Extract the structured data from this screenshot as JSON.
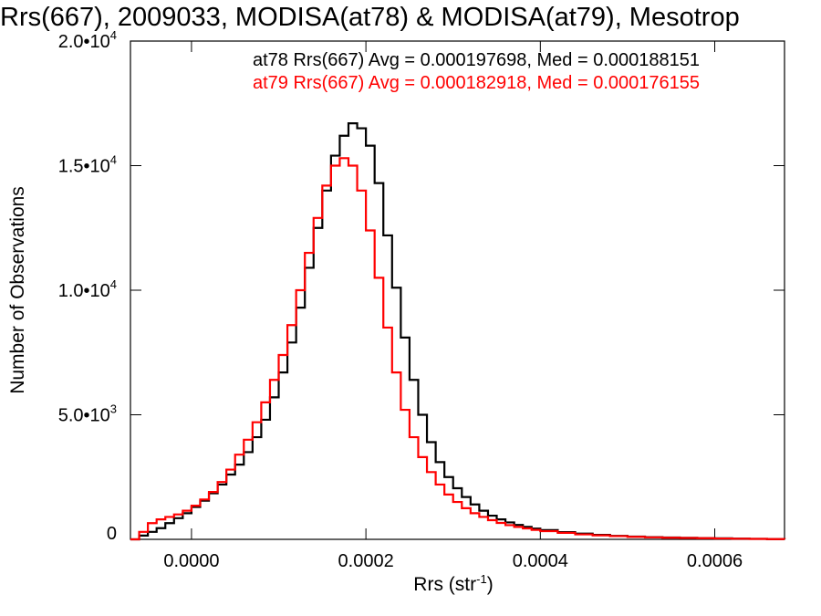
{
  "chart_data": {
    "type": "line",
    "title": "Rrs(667), 2009033, MODISA(at78) & MODISA(at79), Mesotrop",
    "xlabel": {
      "text": "Rrs (str",
      "exponent": "-1",
      "close": ")"
    },
    "ylabel": "Number of Observations",
    "xlim": [
      -7e-05,
      0.00068
    ],
    "ylim": [
      0,
      20000
    ],
    "x_ticks": [
      {
        "value": 0.0,
        "label": "0.0000"
      },
      {
        "value": 0.0002,
        "label": "0.0002"
      },
      {
        "value": 0.0004,
        "label": "0.0004"
      },
      {
        "value": 0.0006,
        "label": "0.0006"
      }
    ],
    "y_ticks": [
      {
        "value": 0,
        "mantissa": "0",
        "exponent": ""
      },
      {
        "value": 5000,
        "mantissa": "5.0•10",
        "exponent": "3"
      },
      {
        "value": 10000,
        "mantissa": "1.0•10",
        "exponent": "4"
      },
      {
        "value": 15000,
        "mantissa": "1.5•10",
        "exponent": "4"
      },
      {
        "value": 20000,
        "mantissa": "2.0•10",
        "exponent": "4"
      }
    ],
    "grid": false,
    "series": [
      {
        "name": "at78",
        "color": "#000000",
        "stats": "at78 Rrs(667) Avg = 0.000197698, Med = 0.000188151",
        "x": [
          -7e-05,
          -6e-05,
          -5e-05,
          -4e-05,
          -3e-05,
          -2e-05,
          -1e-05,
          0.0,
          1e-05,
          2e-05,
          3e-05,
          4e-05,
          5e-05,
          6e-05,
          7e-05,
          8e-05,
          9e-05,
          0.0001,
          0.00011,
          0.00012,
          0.00013,
          0.00014,
          0.00015,
          0.00016,
          0.00017,
          0.00018,
          0.00019,
          0.0002,
          0.00021,
          0.00022,
          0.00023,
          0.00024,
          0.00025,
          0.00026,
          0.00027,
          0.00028,
          0.00029,
          0.0003,
          0.00031,
          0.00032,
          0.00033,
          0.00034,
          0.00035,
          0.00036,
          0.00037,
          0.00038,
          0.00039,
          0.0004,
          0.00042,
          0.00044,
          0.00046,
          0.00048,
          0.0005,
          0.00052,
          0.00054,
          0.00056,
          0.00058,
          0.0006,
          0.00062,
          0.00064,
          0.00066,
          0.00068
        ],
        "y": [
          0,
          150,
          300,
          450,
          650,
          850,
          1050,
          1300,
          1550,
          1850,
          2200,
          2600,
          3000,
          3500,
          4100,
          4800,
          5700,
          6700,
          7900,
          9300,
          10900,
          12500,
          14000,
          15400,
          16200,
          16700,
          16500,
          15800,
          14300,
          12200,
          10100,
          8100,
          6400,
          5000,
          3900,
          3100,
          2500,
          2050,
          1700,
          1400,
          1150,
          950,
          800,
          680,
          580,
          500,
          430,
          370,
          290,
          230,
          180,
          140,
          110,
          90,
          75,
          60,
          50,
          40,
          30,
          20,
          10,
          5
        ]
      },
      {
        "name": "at79",
        "color": "#ff0000",
        "stats": "at79 Rrs(667) Avg = 0.000182918, Med = 0.000176155",
        "x": [
          -7e-05,
          -6e-05,
          -5e-05,
          -4e-05,
          -3e-05,
          -2e-05,
          -1e-05,
          0.0,
          1e-05,
          2e-05,
          3e-05,
          4e-05,
          5e-05,
          6e-05,
          7e-05,
          8e-05,
          9e-05,
          0.0001,
          0.00011,
          0.00012,
          0.00013,
          0.00014,
          0.00015,
          0.00016,
          0.00017,
          0.00018,
          0.00019,
          0.0002,
          0.00021,
          0.00022,
          0.00023,
          0.00024,
          0.00025,
          0.00026,
          0.00027,
          0.00028,
          0.00029,
          0.0003,
          0.00031,
          0.00032,
          0.00033,
          0.00034,
          0.00035,
          0.00036,
          0.00037,
          0.00038,
          0.00039,
          0.0004,
          0.00042,
          0.00044,
          0.00046,
          0.00048,
          0.0005,
          0.00052,
          0.00054,
          0.00056,
          0.00058,
          0.0006,
          0.00062,
          0.00064,
          0.00066,
          0.00068
        ],
        "y": [
          0,
          300,
          650,
          800,
          900,
          1000,
          1150,
          1350,
          1600,
          1900,
          2300,
          2800,
          3400,
          4000,
          4700,
          5500,
          6400,
          7400,
          8600,
          10000,
          11500,
          12900,
          14200,
          15000,
          15300,
          15000,
          14000,
          12400,
          10500,
          8500,
          6700,
          5200,
          4100,
          3300,
          2700,
          2200,
          1800,
          1500,
          1250,
          1050,
          900,
          770,
          660,
          570,
          500,
          440,
          380,
          330,
          260,
          200,
          160,
          130,
          100,
          80,
          65,
          55,
          45,
          35,
          25,
          18,
          10,
          5
        ]
      }
    ]
  }
}
